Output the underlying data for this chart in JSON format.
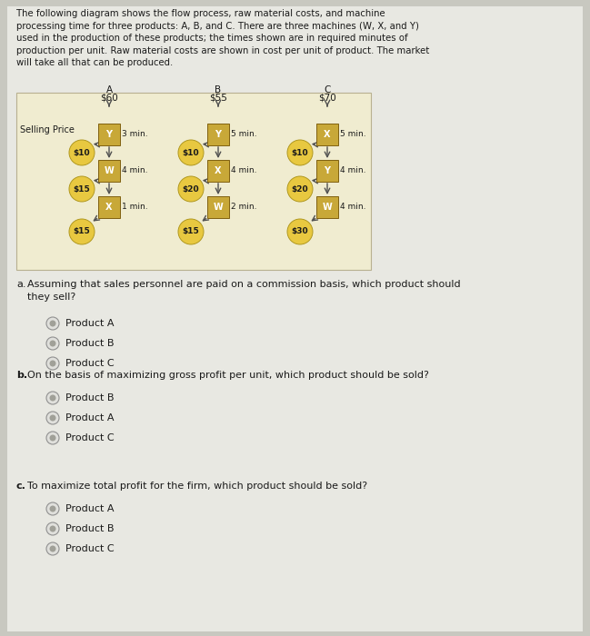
{
  "page_bg": "#c8c8c0",
  "content_bg": "#e8e8e2",
  "diagram_bg": "#f0ecd0",
  "diagram_border": "#b8b090",
  "title_lines": [
    "The following diagram shows the flow process, raw material costs, and machine",
    "processing time for three products: A, B, and C. There are three machines (W, X, and Y)",
    "used in the production of these products; the times shown are in required minutes of",
    "production per unit. Raw material costs are shown in cost per unit of product. The market",
    "will take all that can be produced."
  ],
  "selling_price_label": "Selling Price",
  "products": [
    {
      "name": "A",
      "price": "$60"
    },
    {
      "name": "B",
      "price": "$55"
    },
    {
      "name": "C",
      "price": "$70"
    }
  ],
  "flow_A": [
    {
      "machine": "Y",
      "time": "3 min.",
      "cost_left": "$10"
    },
    {
      "machine": "W",
      "time": "4 min.",
      "cost_left": "$15"
    },
    {
      "machine": "X",
      "time": "1 min.",
      "cost_left": "$15"
    }
  ],
  "flow_B": [
    {
      "machine": "Y",
      "time": "5 min.",
      "cost_left": "$10"
    },
    {
      "machine": "X",
      "time": "4 min.",
      "cost_left": "$20"
    },
    {
      "machine": "W",
      "time": "2 min.",
      "cost_left": "$15"
    }
  ],
  "flow_C": [
    {
      "machine": "X",
      "time": "5 min.",
      "cost_left": "$10"
    },
    {
      "machine": "Y",
      "time": "4 min.",
      "cost_left": "$20"
    },
    {
      "machine": "W",
      "time": "4 min.",
      "cost_left": "$30"
    }
  ],
  "circle_face": "#e8c840",
  "circle_edge": "#b09820",
  "square_face": "#c8a838",
  "square_edge": "#806010",
  "arrow_color": "#505050",
  "text_dark": "#1a1a1a",
  "q_a_label": "a.",
  "q_a_text": "Assuming that sales personnel are paid on a commission basis, which product should\nthey sell?",
  "q_a_opts": [
    "Product A",
    "Product B",
    "Product C"
  ],
  "q_b_label": "b.",
  "q_b_text": "On the basis of maximizing gross profit per unit, which product should be sold?",
  "q_b_opts": [
    "Product B",
    "Product A",
    "Product C"
  ],
  "q_c_label": "c.",
  "q_c_text": "To maximize total profit for the firm, which product should be sold?",
  "q_c_opts": [
    "Product A",
    "Product B",
    "Product C"
  ],
  "radio_face": "#c8c8c0",
  "radio_edge": "#808080",
  "radio_dot": "#909090"
}
